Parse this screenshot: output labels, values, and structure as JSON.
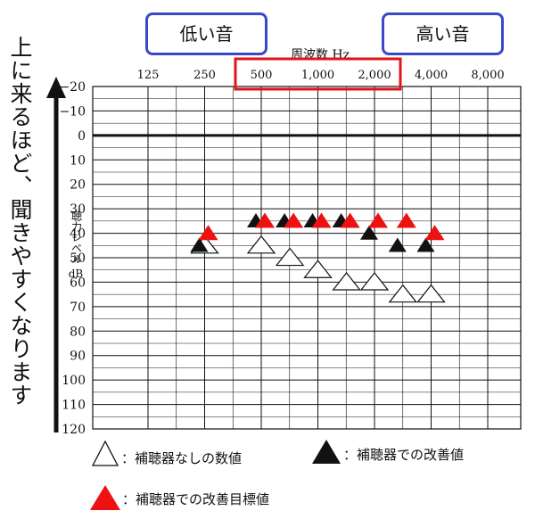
{
  "header": {
    "low_label": "低い音",
    "high_label": "高い音",
    "freq_title": "周波数 Hz"
  },
  "side_caption": "上に来るほど、聞きやすくなります",
  "y_axis_label": {
    "jp": "聴力レベル",
    "unit": "dB"
  },
  "legend": {
    "without_aid": "：補聴器なしの数値",
    "with_aid": "：補聴器での改善値",
    "target": "：補聴器での改善目標値"
  },
  "colors": {
    "highlight_box": "#e0141b",
    "badge_border": "#3b48c8",
    "target_marker": "#ee1111",
    "with_aid_marker": "#111111",
    "without_aid_marker": "#ffffff"
  },
  "chart_data": {
    "type": "scatter",
    "x_tick_labels": [
      "125",
      "250",
      "500",
      "1,000",
      "2,000",
      "4,000",
      "8,000"
    ],
    "highlighted_ticks": [
      "500",
      "1,000",
      "2,000"
    ],
    "y_ticks": [
      -20,
      -10,
      0,
      10,
      20,
      30,
      40,
      50,
      60,
      70,
      80,
      90,
      100,
      110,
      120
    ],
    "y_tick_labels": [
      "−20",
      "−10",
      "0",
      "10",
      "20",
      "30",
      "40",
      "50",
      "60",
      "70",
      "80",
      "90",
      "100",
      "110",
      "120"
    ],
    "ylim": [
      -20,
      120
    ],
    "y_inverted": true,
    "x_scale": "log2",
    "grid": true,
    "series": [
      {
        "name": "補聴器なしの数値",
        "marker": "open-triangle",
        "points": [
          {
            "x": 250,
            "y": 45
          },
          {
            "x": 500,
            "y": 45
          },
          {
            "x": 710,
            "y": 50
          },
          {
            "x": 1000,
            "y": 55
          },
          {
            "x": 1420,
            "y": 60
          },
          {
            "x": 2000,
            "y": 60
          },
          {
            "x": 2830,
            "y": 65
          },
          {
            "x": 4000,
            "y": 65
          }
        ]
      },
      {
        "name": "補聴器での改善値",
        "marker": "filled-triangle",
        "points": [
          {
            "x": 250,
            "y": 45
          },
          {
            "x": 500,
            "y": 35
          },
          {
            "x": 710,
            "y": 35
          },
          {
            "x": 1000,
            "y": 35
          },
          {
            "x": 1420,
            "y": 35
          },
          {
            "x": 2000,
            "y": 40
          },
          {
            "x": 2830,
            "y": 45
          },
          {
            "x": 4000,
            "y": 45
          }
        ]
      },
      {
        "name": "補聴器での改善目標値",
        "marker": "red-triangle",
        "points": [
          {
            "x": 250,
            "y": 40
          },
          {
            "x": 500,
            "y": 35
          },
          {
            "x": 710,
            "y": 35
          },
          {
            "x": 1000,
            "y": 35
          },
          {
            "x": 1420,
            "y": 35
          },
          {
            "x": 2000,
            "y": 35
          },
          {
            "x": 2830,
            "y": 35
          },
          {
            "x": 4000,
            "y": 40
          }
        ]
      }
    ]
  }
}
